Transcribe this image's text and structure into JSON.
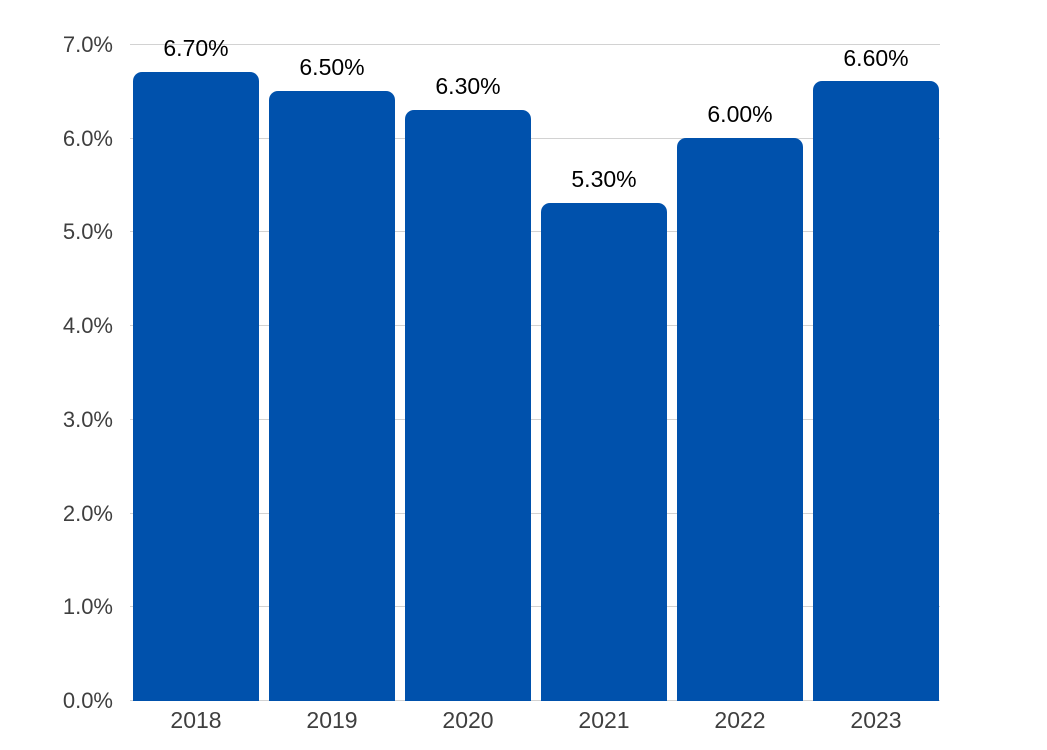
{
  "chart_data": {
    "type": "bar",
    "title": "",
    "xlabel": "",
    "ylabel": "",
    "categories": [
      "2018",
      "2019",
      "2020",
      "2021",
      "2022",
      "2023"
    ],
    "values": [
      6.7,
      6.5,
      6.3,
      5.3,
      6.0,
      6.6
    ],
    "data_labels": [
      "6.70%",
      "6.50%",
      "6.30%",
      "5.30%",
      "6.00%",
      "6.60%"
    ],
    "y_ticks": [
      {
        "value": 0,
        "label": "0.0%"
      },
      {
        "value": 1,
        "label": "1.0%"
      },
      {
        "value": 2,
        "label": "2.0%"
      },
      {
        "value": 3,
        "label": "3.0%"
      },
      {
        "value": 4,
        "label": "4.0%"
      },
      {
        "value": 5,
        "label": "5.0%"
      },
      {
        "value": 6,
        "label": "6.0%"
      },
      {
        "value": 7,
        "label": "7.0%"
      }
    ],
    "ylim": [
      0,
      7
    ],
    "grid": true,
    "legend": "none",
    "colors": {
      "bar": "#0051AC",
      "gridline": "#D2D2D2",
      "axis_text": "#3F3F3F",
      "data_label_text": "#000000",
      "background": "#FFFFFF"
    }
  }
}
